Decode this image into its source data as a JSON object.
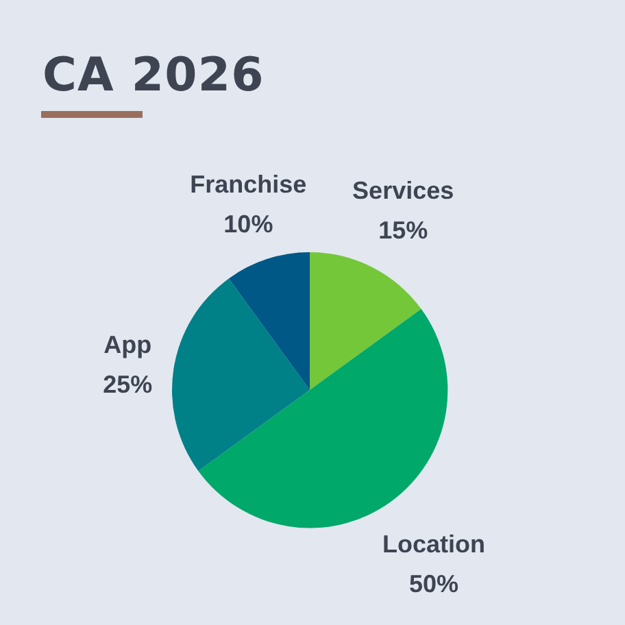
{
  "chart_data": {
    "type": "pie",
    "title": "CA 2026",
    "categories": [
      "Services",
      "Location",
      "App",
      "Franchise"
    ],
    "values": [
      15,
      50,
      25,
      10
    ],
    "colors": [
      "#74c739",
      "#00a86a",
      "#008087",
      "#005886"
    ],
    "value_labels": [
      "15%",
      "50%",
      "25%",
      "10%"
    ]
  }
}
